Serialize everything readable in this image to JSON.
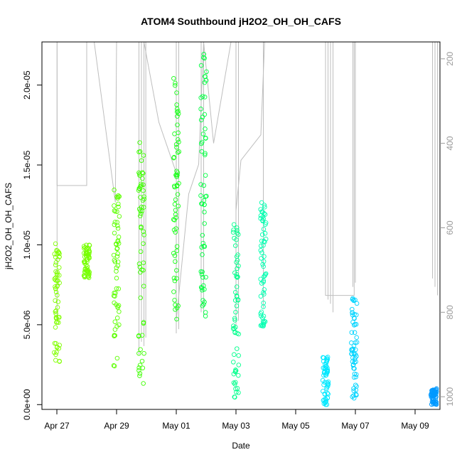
{
  "chart_data": {
    "type": "scatter",
    "title": "ATOM4 Southbound jH2O2_OH_OH_CAFS",
    "xlabel": "Date",
    "ylabel": "jH2O2_OH_OH_CAFS",
    "x_ticks": [
      "Apr 27",
      "Apr 29",
      "May 01",
      "May 03",
      "May 05",
      "May 07",
      "May 09"
    ],
    "y_ticks": [
      "0.0e+00",
      "5.0e-06",
      "1.0e-05",
      "1.5e-05",
      "2.0e-05"
    ],
    "y_tick_values": [
      0,
      5e-06,
      1e-05,
      1.5e-05,
      2e-05
    ],
    "right_ticks": [
      "200",
      "400",
      "600",
      "800",
      "1000"
    ],
    "right_tick_values": [
      200,
      400,
      600,
      800,
      1000
    ],
    "xlim": [
      "2018-04-26T12:00",
      "2018-05-09T20:00"
    ],
    "ylim": [
      -3e-07,
      2.27e-05
    ],
    "right_ylim": [
      1030,
      160
    ],
    "marker": "open-circle",
    "color_scale": "rainbow by time (lime to blue)",
    "colors": {
      "background": "#ffffff",
      "axis": "#000000",
      "altitude_line": "#bebebe",
      "right_axis": "#9a9a9a"
    },
    "series": [
      {
        "x": "2018-04-27T00:10",
        "y_min": 2.7e-06,
        "y_max": 1.01e-05,
        "color": "#80ff00"
      },
      {
        "x": "2018-04-28T00:00",
        "y_min": 7.9e-06,
        "y_max": 1e-05,
        "color": "#76ff00"
      },
      {
        "x": "2018-04-29T00:00",
        "y_min": 2.4e-06,
        "y_max": 1.35e-05,
        "color": "#5cff00"
      },
      {
        "x": "2018-04-29T20:00",
        "y_min": 1.3e-06,
        "y_max": 1.65e-05,
        "color": "#3dff00"
      },
      {
        "x": "2018-05-01T00:00",
        "y_min": 4.6e-06,
        "y_max": 2.05e-05,
        "color": "#1aff1a"
      },
      {
        "x": "2018-05-01T22:00",
        "y_min": 5.3e-06,
        "y_max": 2.2e-05,
        "color": "#00ff40"
      },
      {
        "x": "2018-05-03T00:00",
        "y_min": 4e-07,
        "y_max": 1.16e-05,
        "color": "#00ff8c"
      },
      {
        "x": "2018-05-03T22:00",
        "y_min": 4.9e-06,
        "y_max": 1.28e-05,
        "color": "#00ffb0"
      },
      {
        "x": "2018-05-06T00:00",
        "y_min": 0.0,
        "y_max": 3.1e-06,
        "color": "#00e8ff"
      },
      {
        "x": "2018-05-06T23:00",
        "y_min": 2e-07,
        "y_max": 6.7e-06,
        "color": "#00d4ff"
      },
      {
        "x": "2018-05-09T15:00",
        "y_min": 0.0,
        "y_max": 1e-06,
        "color": "#0099ff"
      }
    ]
  }
}
